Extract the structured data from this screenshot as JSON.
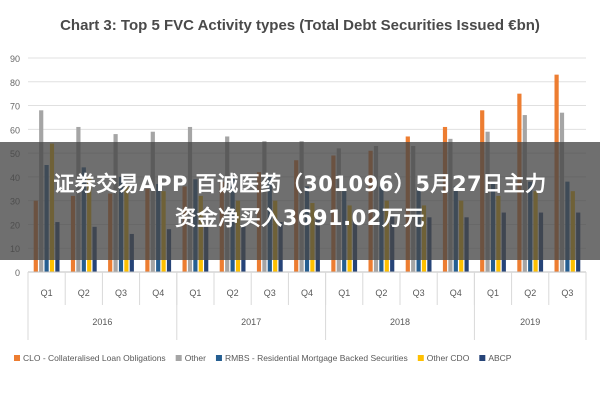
{
  "chart_data": {
    "type": "bar",
    "title": "Chart 3: Top 5 FVC Activity types (Total Debt Securities Issued €bn)",
    "xlabel": "",
    "ylabel": "",
    "ylim": [
      0,
      90
    ],
    "yticks": [
      "0",
      "10",
      "20",
      "30",
      "40",
      "50",
      "60",
      "70",
      "80",
      "90"
    ],
    "grid": true,
    "legend_position": "bottom",
    "categories": [
      "Q1",
      "Q2",
      "Q3",
      "Q4",
      "Q1",
      "Q2",
      "Q3",
      "Q4",
      "Q1",
      "Q2",
      "Q3",
      "Q4",
      "Q1",
      "Q2",
      "Q3"
    ],
    "year_groups": [
      {
        "label": "2016",
        "count": 4
      },
      {
        "label": "2017",
        "count": 4
      },
      {
        "label": "2018",
        "count": 4
      },
      {
        "label": "2019",
        "count": 3
      }
    ],
    "series": [
      {
        "name": "CLO - Collateralised Loan Obligations",
        "color": "#ed7d31",
        "values": [
          30,
          32,
          33,
          35,
          36,
          38,
          42,
          47,
          49,
          51,
          57,
          61,
          68,
          75,
          83
        ]
      },
      {
        "name": "Other",
        "color": "#a5a5a5",
        "values": [
          68,
          61,
          58,
          59,
          61,
          57,
          55,
          55,
          52,
          53,
          53,
          56,
          59,
          66,
          67
        ]
      },
      {
        "name": "RMBS - Residential Mortgage Backed Securities",
        "color": "#255e91",
        "values": [
          45,
          44,
          40,
          37,
          39,
          40,
          40,
          36,
          34,
          36,
          35,
          36,
          37,
          38,
          38
        ]
      },
      {
        "name": "Other CDO",
        "color": "#ffc000",
        "values": [
          54,
          40,
          36,
          34,
          32,
          30,
          30,
          29,
          28,
          30,
          28,
          30,
          32,
          34,
          34
        ]
      },
      {
        "name": "ABCP",
        "color": "#264478",
        "values": [
          21,
          19,
          16,
          18,
          19,
          20,
          21,
          22,
          24,
          24,
          23,
          23,
          25,
          25,
          25
        ]
      }
    ]
  },
  "overlay": {
    "line1": "证券交易APP 百诚医药（301096）5月27日主力",
    "line2": "资金净买入3691.02万元"
  }
}
